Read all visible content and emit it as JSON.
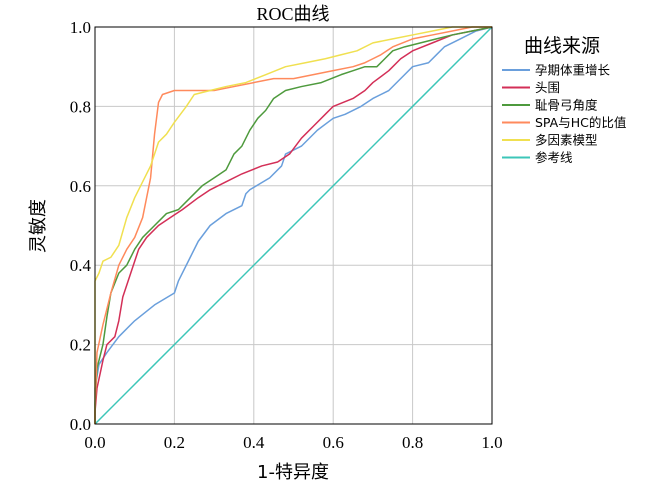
{
  "chart_data": {
    "type": "line",
    "title": "ROC曲线",
    "xlabel": "1-特异度",
    "ylabel": "灵敏度",
    "xlim": [
      0,
      1
    ],
    "ylim": [
      0,
      1
    ],
    "xticks": [
      "0.0",
      "0.2",
      "0.4",
      "0.6",
      "0.8",
      "1.0"
    ],
    "yticks": [
      "0.0",
      "0.2",
      "0.4",
      "0.6",
      "0.8",
      "1.0"
    ],
    "grid": true,
    "legend_title": "曲线来源",
    "legend_position": "right",
    "series": [
      {
        "name": "孕期体重增长",
        "color": "#6a9fdc",
        "points": [
          [
            0,
            0
          ],
          [
            0,
            0.09
          ],
          [
            0.01,
            0.15
          ],
          [
            0.03,
            0.18
          ],
          [
            0.06,
            0.22
          ],
          [
            0.1,
            0.26
          ],
          [
            0.15,
            0.3
          ],
          [
            0.2,
            0.33
          ],
          [
            0.21,
            0.36
          ],
          [
            0.24,
            0.42
          ],
          [
            0.26,
            0.46
          ],
          [
            0.29,
            0.5
          ],
          [
            0.33,
            0.53
          ],
          [
            0.37,
            0.55
          ],
          [
            0.38,
            0.58
          ],
          [
            0.39,
            0.59
          ],
          [
            0.44,
            0.62
          ],
          [
            0.47,
            0.65
          ],
          [
            0.48,
            0.68
          ],
          [
            0.52,
            0.7
          ],
          [
            0.56,
            0.74
          ],
          [
            0.6,
            0.77
          ],
          [
            0.63,
            0.78
          ],
          [
            0.67,
            0.8
          ],
          [
            0.7,
            0.82
          ],
          [
            0.74,
            0.84
          ],
          [
            0.78,
            0.88
          ],
          [
            0.8,
            0.9
          ],
          [
            0.84,
            0.91
          ],
          [
            0.86,
            0.93
          ],
          [
            0.88,
            0.95
          ],
          [
            0.92,
            0.97
          ],
          [
            0.96,
            0.99
          ],
          [
            1,
            1
          ]
        ]
      },
      {
        "name": "头围",
        "color": "#d32f57",
        "points": [
          [
            0,
            0
          ],
          [
            0,
            0.03
          ],
          [
            0.005,
            0.09
          ],
          [
            0.02,
            0.16
          ],
          [
            0.03,
            0.2
          ],
          [
            0.05,
            0.22
          ],
          [
            0.06,
            0.26
          ],
          [
            0.07,
            0.32
          ],
          [
            0.09,
            0.38
          ],
          [
            0.11,
            0.44
          ],
          [
            0.13,
            0.47
          ],
          [
            0.16,
            0.5
          ],
          [
            0.19,
            0.52
          ],
          [
            0.22,
            0.54
          ],
          [
            0.26,
            0.57
          ],
          [
            0.29,
            0.59
          ],
          [
            0.33,
            0.61
          ],
          [
            0.37,
            0.63
          ],
          [
            0.42,
            0.65
          ],
          [
            0.46,
            0.66
          ],
          [
            0.49,
            0.68
          ],
          [
            0.52,
            0.72
          ],
          [
            0.55,
            0.75
          ],
          [
            0.58,
            0.78
          ],
          [
            0.6,
            0.8
          ],
          [
            0.65,
            0.82
          ],
          [
            0.68,
            0.84
          ],
          [
            0.7,
            0.86
          ],
          [
            0.74,
            0.89
          ],
          [
            0.77,
            0.92
          ],
          [
            0.8,
            0.94
          ],
          [
            0.85,
            0.96
          ],
          [
            0.9,
            0.98
          ],
          [
            0.95,
            0.99
          ],
          [
            1,
            1
          ]
        ]
      },
      {
        "name": "耻骨弓角度",
        "color": "#4e9a3d",
        "points": [
          [
            0,
            0
          ],
          [
            0,
            0.05
          ],
          [
            0.005,
            0.14
          ],
          [
            0.02,
            0.2
          ],
          [
            0.03,
            0.27
          ],
          [
            0.04,
            0.33
          ],
          [
            0.06,
            0.38
          ],
          [
            0.08,
            0.4
          ],
          [
            0.09,
            0.42
          ],
          [
            0.1,
            0.44
          ],
          [
            0.12,
            0.47
          ],
          [
            0.15,
            0.5
          ],
          [
            0.18,
            0.53
          ],
          [
            0.21,
            0.54
          ],
          [
            0.24,
            0.57
          ],
          [
            0.27,
            0.6
          ],
          [
            0.3,
            0.62
          ],
          [
            0.33,
            0.64
          ],
          [
            0.35,
            0.68
          ],
          [
            0.37,
            0.7
          ],
          [
            0.39,
            0.74
          ],
          [
            0.41,
            0.77
          ],
          [
            0.43,
            0.79
          ],
          [
            0.45,
            0.82
          ],
          [
            0.48,
            0.84
          ],
          [
            0.52,
            0.85
          ],
          [
            0.57,
            0.86
          ],
          [
            0.62,
            0.88
          ],
          [
            0.65,
            0.89
          ],
          [
            0.68,
            0.9
          ],
          [
            0.71,
            0.9
          ],
          [
            0.73,
            0.92
          ],
          [
            0.75,
            0.94
          ],
          [
            0.78,
            0.95
          ],
          [
            0.82,
            0.96
          ],
          [
            0.86,
            0.97
          ],
          [
            0.9,
            0.98
          ],
          [
            0.95,
            0.99
          ],
          [
            1,
            1
          ]
        ]
      },
      {
        "name": "SPA与HC的比值",
        "color": "#ff8a5c",
        "points": [
          [
            0,
            0
          ],
          [
            0,
            0.03
          ],
          [
            0.005,
            0.18
          ],
          [
            0.02,
            0.25
          ],
          [
            0.04,
            0.33
          ],
          [
            0.06,
            0.4
          ],
          [
            0.08,
            0.44
          ],
          [
            0.1,
            0.47
          ],
          [
            0.12,
            0.52
          ],
          [
            0.14,
            0.62
          ],
          [
            0.15,
            0.73
          ],
          [
            0.16,
            0.81
          ],
          [
            0.17,
            0.83
          ],
          [
            0.2,
            0.84
          ],
          [
            0.25,
            0.84
          ],
          [
            0.3,
            0.84
          ],
          [
            0.35,
            0.85
          ],
          [
            0.4,
            0.86
          ],
          [
            0.45,
            0.87
          ],
          [
            0.5,
            0.87
          ],
          [
            0.55,
            0.88
          ],
          [
            0.6,
            0.89
          ],
          [
            0.65,
            0.9
          ],
          [
            0.68,
            0.91
          ],
          [
            0.7,
            0.92
          ],
          [
            0.72,
            0.93
          ],
          [
            0.75,
            0.95
          ],
          [
            0.8,
            0.97
          ],
          [
            0.85,
            0.98
          ],
          [
            0.9,
            0.99
          ],
          [
            0.95,
            1.0
          ],
          [
            1,
            1
          ]
        ]
      },
      {
        "name": "多因素模型",
        "color": "#f0e050",
        "points": [
          [
            0,
            0
          ],
          [
            0,
            0.36
          ],
          [
            0.01,
            0.38
          ],
          [
            0.02,
            0.41
          ],
          [
            0.04,
            0.42
          ],
          [
            0.06,
            0.45
          ],
          [
            0.08,
            0.52
          ],
          [
            0.1,
            0.57
          ],
          [
            0.12,
            0.61
          ],
          [
            0.14,
            0.65
          ],
          [
            0.16,
            0.71
          ],
          [
            0.18,
            0.73
          ],
          [
            0.2,
            0.76
          ],
          [
            0.23,
            0.8
          ],
          [
            0.25,
            0.83
          ],
          [
            0.29,
            0.84
          ],
          [
            0.33,
            0.85
          ],
          [
            0.38,
            0.86
          ],
          [
            0.43,
            0.88
          ],
          [
            0.48,
            0.9
          ],
          [
            0.53,
            0.91
          ],
          [
            0.58,
            0.92
          ],
          [
            0.62,
            0.93
          ],
          [
            0.66,
            0.94
          ],
          [
            0.7,
            0.96
          ],
          [
            0.75,
            0.97
          ],
          [
            0.8,
            0.98
          ],
          [
            0.85,
            0.99
          ],
          [
            0.9,
            1.0
          ],
          [
            1,
            1
          ]
        ]
      },
      {
        "name": "参考线",
        "color": "#3cc6b8",
        "points": [
          [
            0,
            0
          ],
          [
            1,
            1
          ]
        ]
      }
    ]
  }
}
